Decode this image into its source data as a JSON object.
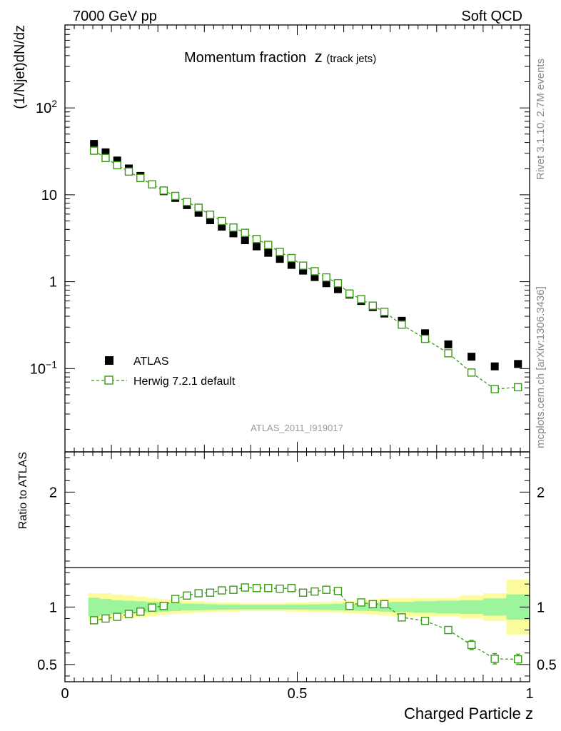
{
  "header": {
    "left": "7000 GeV pp",
    "right": "Soft QCD"
  },
  "side_labels": {
    "rivet": "Rivet 3.1.10,  2.7M events",
    "mcplots": "mcplots.cern.ch [arXiv:1306.3436]"
  },
  "colors": {
    "data": "#000000",
    "mc": "#3a9a16",
    "band_inner": "#9cf59c",
    "band_outer": "#fcfc9c",
    "sidetext": "#888888",
    "watermark": "#999999"
  },
  "chart_data": [
    {
      "type": "scatter",
      "panel": "main",
      "title": "Momentum fraction",
      "title_symbol": "z",
      "title_subscript": "(track jets)",
      "ylabel": "(1/Njet)dN/dz",
      "yscale": "log",
      "ylim": [
        0.011,
        900
      ],
      "xlim": [
        0,
        1
      ],
      "yticks_labeled": [
        {
          "value": 100,
          "mantissa": "10",
          "exponent": "2"
        },
        {
          "value": 10,
          "mantissa": "10",
          "exponent": ""
        },
        {
          "value": 1,
          "mantissa": "1",
          "exponent": ""
        },
        {
          "value": 0.1,
          "mantissa": "10",
          "exponent": "−1"
        }
      ],
      "watermark": "ATLAS_2011_I919017",
      "legend": [
        {
          "label": "ATLAS",
          "marker": "filled-square"
        },
        {
          "label": "Herwig 7.2.1 default",
          "marker": "open-square-dashed"
        }
      ],
      "x": [
        0.0625,
        0.0875,
        0.1125,
        0.1375,
        0.1625,
        0.1875,
        0.2125,
        0.2375,
        0.2625,
        0.2875,
        0.3125,
        0.3375,
        0.3625,
        0.3875,
        0.4125,
        0.4375,
        0.4625,
        0.4875,
        0.5125,
        0.5375,
        0.5625,
        0.5875,
        0.6125,
        0.6375,
        0.6625,
        0.6875,
        0.725,
        0.775,
        0.825,
        0.875,
        0.925,
        0.975
      ],
      "series": [
        {
          "name": "ATLAS",
          "values": [
            38.5,
            30.8,
            24.8,
            20.1,
            16.5,
            13.2,
            11.0,
            9.2,
            7.6,
            6.2,
            5.1,
            4.3,
            3.6,
            3.0,
            2.55,
            2.15,
            1.83,
            1.56,
            1.34,
            1.13,
            0.96,
            0.82,
            0.71,
            0.6,
            0.51,
            0.43,
            0.355,
            0.255,
            0.19,
            0.137,
            0.106,
            0.113
          ]
        },
        {
          "name": "Herwig 7.2.1 default",
          "values": [
            32.2,
            26.5,
            21.9,
            18.5,
            15.6,
            13.2,
            11.2,
            9.7,
            8.3,
            7.1,
            5.9,
            5.0,
            4.2,
            3.65,
            3.1,
            2.65,
            2.2,
            1.87,
            1.53,
            1.32,
            1.12,
            0.96,
            0.73,
            0.63,
            0.53,
            0.45,
            0.32,
            0.22,
            0.15,
            0.09,
            0.058,
            0.061
          ]
        }
      ]
    },
    {
      "type": "scatter",
      "panel": "ratio",
      "ylabel": "Ratio to ATLAS",
      "xlabel": "Charged Particle z",
      "ylim": [
        0.35,
        2.35
      ],
      "xlim": [
        0,
        1
      ],
      "yticks": [
        0.5,
        1,
        2
      ],
      "ytick_labels": [
        "0.5",
        "1",
        "2"
      ],
      "xticks": [
        0,
        0.5,
        1
      ],
      "xtick_labels": [
        "0",
        "0.5",
        "1"
      ],
      "bin_edges": [
        0.05,
        0.075,
        0.1,
        0.125,
        0.15,
        0.175,
        0.2,
        0.225,
        0.25,
        0.275,
        0.3,
        0.325,
        0.35,
        0.375,
        0.4,
        0.425,
        0.45,
        0.475,
        0.5,
        0.525,
        0.55,
        0.575,
        0.6,
        0.625,
        0.65,
        0.675,
        0.7,
        0.75,
        0.8,
        0.85,
        0.9,
        0.95,
        1.0
      ],
      "band_inner_halfwidth": [
        0.08,
        0.07,
        0.06,
        0.055,
        0.05,
        0.045,
        0.04,
        0.035,
        0.03,
        0.028,
        0.025,
        0.023,
        0.022,
        0.02,
        0.02,
        0.02,
        0.02,
        0.022,
        0.022,
        0.024,
        0.025,
        0.028,
        0.03,
        0.033,
        0.035,
        0.04,
        0.045,
        0.05,
        0.055,
        0.06,
        0.075,
        0.11
      ],
      "band_outer_halfwidth": [
        0.12,
        0.12,
        0.11,
        0.1,
        0.09,
        0.08,
        0.07,
        0.06,
        0.055,
        0.05,
        0.045,
        0.04,
        0.04,
        0.035,
        0.035,
        0.035,
        0.035,
        0.04,
        0.04,
        0.045,
        0.045,
        0.05,
        0.055,
        0.06,
        0.065,
        0.075,
        0.08,
        0.08,
        0.08,
        0.1,
        0.12,
        0.24
      ],
      "x": [
        0.0625,
        0.0875,
        0.1125,
        0.1375,
        0.1625,
        0.1875,
        0.2125,
        0.2375,
        0.2625,
        0.2875,
        0.3125,
        0.3375,
        0.3625,
        0.3875,
        0.4125,
        0.4375,
        0.4625,
        0.4875,
        0.5125,
        0.5375,
        0.5625,
        0.5875,
        0.6125,
        0.6375,
        0.6625,
        0.6875,
        0.725,
        0.775,
        0.825,
        0.875,
        0.925,
        0.975
      ],
      "series": [
        {
          "name": "Herwig 7.2.1 default",
          "values": [
            0.885,
            0.9,
            0.915,
            0.94,
            0.96,
            0.995,
            1.01,
            1.07,
            1.1,
            1.12,
            1.125,
            1.145,
            1.15,
            1.17,
            1.165,
            1.165,
            1.16,
            1.165,
            1.125,
            1.135,
            1.15,
            1.14,
            1.01,
            1.04,
            1.025,
            1.025,
            0.91,
            0.88,
            0.8,
            0.67,
            0.55,
            0.545
          ],
          "errors": [
            0.01,
            0.01,
            0.01,
            0.01,
            0.01,
            0.01,
            0.01,
            0.01,
            0.01,
            0.01,
            0.01,
            0.01,
            0.01,
            0.01,
            0.01,
            0.01,
            0.01,
            0.01,
            0.01,
            0.01,
            0.01,
            0.01,
            0.01,
            0.01,
            0.01,
            0.01,
            0.015,
            0.02,
            0.03,
            0.04,
            0.045,
            0.045
          ]
        }
      ]
    }
  ]
}
